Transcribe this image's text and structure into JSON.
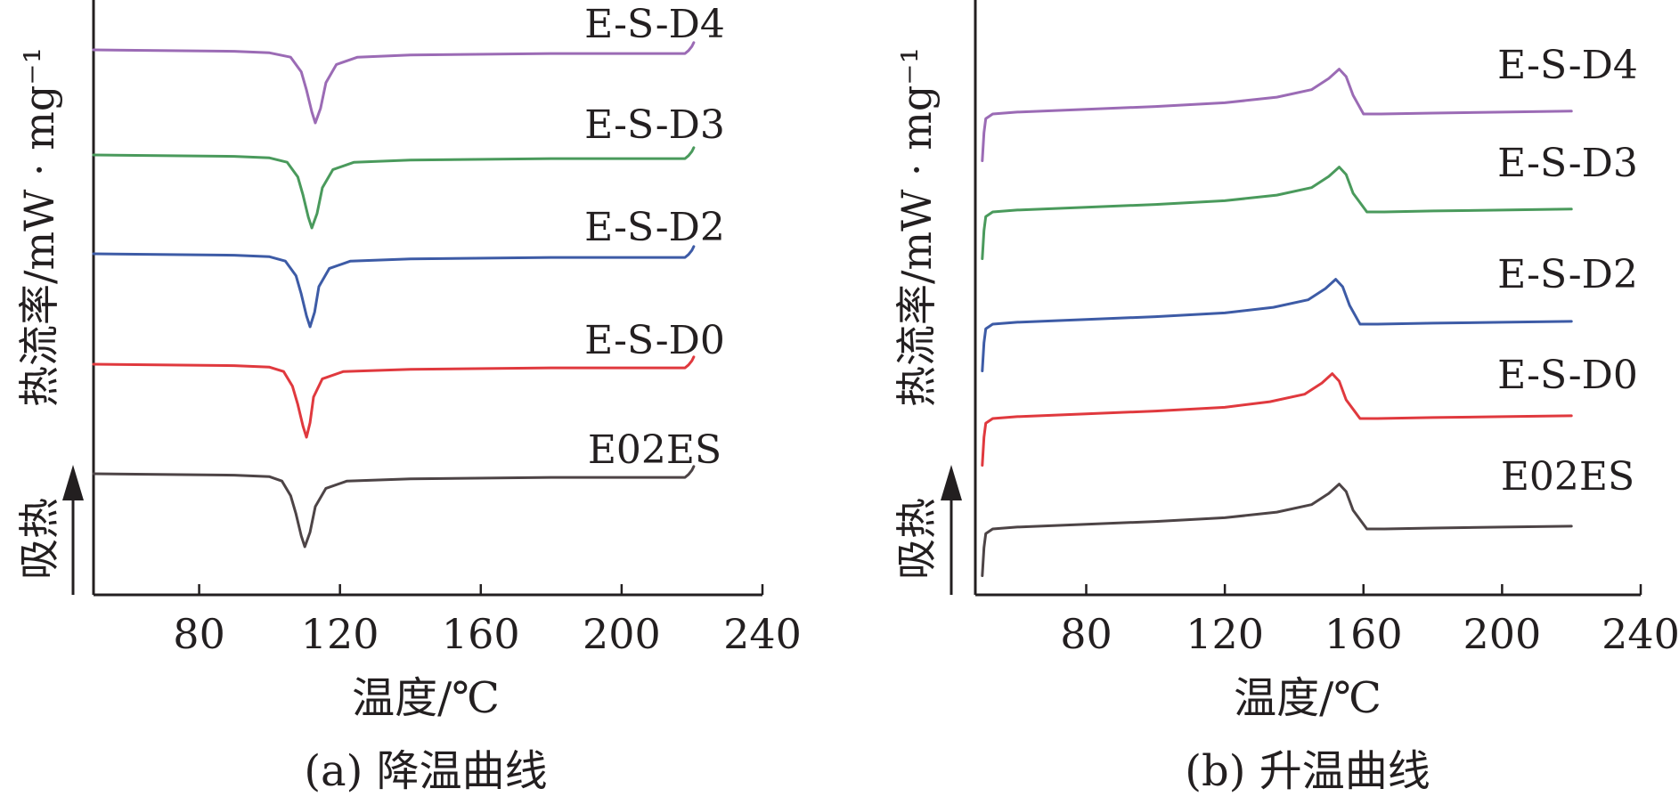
{
  "chart_data": [
    {
      "type": "line",
      "caption": "(a) 降温曲线",
      "xlabel": "温度/℃",
      "ylabel": "热流率/mW · mg⁻¹",
      "y_direction_label": "吸热",
      "xlim": [
        50,
        240
      ],
      "xticks": [
        80,
        120,
        160,
        200,
        240
      ],
      "grid": false,
      "series": [
        {
          "name": "E-S-D4",
          "color": "#9b6bb5",
          "x": [
            50,
            90,
            100,
            106,
            109,
            110.5,
            112,
            113,
            114.5,
            116,
            119,
            125,
            140,
            180,
            218,
            219,
            220,
            220.5
          ],
          "y": [
            1.0,
            0.98,
            0.96,
            0.9,
            0.7,
            0.45,
            0.15,
            0.0,
            0.2,
            0.55,
            0.8,
            0.9,
            0.93,
            0.95,
            0.95,
            0.99,
            1.05,
            1.1
          ]
        },
        {
          "name": "E-S-D3",
          "color": "#4a9a5c",
          "x": [
            50,
            90,
            100,
            105,
            108,
            109.5,
            111,
            112,
            113.5,
            115,
            118,
            124,
            140,
            180,
            218,
            219,
            220,
            220.5
          ],
          "y": [
            1.0,
            0.98,
            0.96,
            0.9,
            0.7,
            0.45,
            0.15,
            0.0,
            0.2,
            0.55,
            0.8,
            0.9,
            0.93,
            0.95,
            0.95,
            0.99,
            1.05,
            1.1
          ]
        },
        {
          "name": "E-S-D2",
          "color": "#3d5ba6",
          "x": [
            50,
            90,
            100,
            104.5,
            107.5,
            109,
            110.5,
            111.5,
            112.8,
            114,
            117,
            123,
            140,
            180,
            218,
            219,
            220,
            220.5
          ],
          "y": [
            1.0,
            0.98,
            0.96,
            0.9,
            0.7,
            0.45,
            0.15,
            0.0,
            0.2,
            0.55,
            0.8,
            0.9,
            0.93,
            0.95,
            0.95,
            0.99,
            1.05,
            1.1
          ]
        },
        {
          "name": "E-S-D0",
          "color": "#e0393e",
          "x": [
            50,
            90,
            100,
            104,
            106.5,
            108,
            109.5,
            110.5,
            111.5,
            112.5,
            115,
            121,
            140,
            180,
            218,
            219,
            220,
            220.5
          ],
          "y": [
            1.0,
            0.98,
            0.96,
            0.9,
            0.7,
            0.45,
            0.15,
            0.0,
            0.2,
            0.55,
            0.8,
            0.9,
            0.93,
            0.95,
            0.95,
            0.99,
            1.05,
            1.1
          ]
        },
        {
          "name": "E02ES",
          "color": "#4d4446",
          "x": [
            50,
            90,
            100,
            103.5,
            106,
            107.5,
            109,
            110,
            111.5,
            113,
            116,
            122,
            140,
            180,
            218,
            219,
            220,
            220.5
          ],
          "y": [
            1.0,
            0.98,
            0.96,
            0.9,
            0.7,
            0.45,
            0.15,
            0.0,
            0.2,
            0.55,
            0.8,
            0.9,
            0.93,
            0.95,
            0.95,
            0.99,
            1.05,
            1.1
          ]
        }
      ]
    },
    {
      "type": "line",
      "caption": "(b) 升温曲线",
      "xlabel": "温度/℃",
      "ylabel": "热流率/mW · mg⁻¹",
      "y_direction_label": "吸热",
      "xlim": [
        48,
        240
      ],
      "xticks": [
        80,
        120,
        160,
        200,
        240
      ],
      "grid": false,
      "series": [
        {
          "name": "E-S-D4",
          "color": "#9b6bb5",
          "x": [
            50,
            50.5,
            51,
            53,
            60,
            80,
            100,
            120,
            135,
            145,
            150,
            153,
            155,
            157,
            160,
            165,
            180,
            200,
            220
          ],
          "y": [
            0.0,
            0.3,
            0.45,
            0.5,
            0.52,
            0.55,
            0.58,
            0.62,
            0.68,
            0.76,
            0.88,
            0.98,
            0.9,
            0.7,
            0.5,
            0.5,
            0.51,
            0.52,
            0.53
          ]
        },
        {
          "name": "E-S-D3",
          "color": "#4a9a5c",
          "x": [
            50,
            50.5,
            51,
            53,
            60,
            80,
            100,
            120,
            135,
            145,
            150,
            153,
            155,
            157,
            161,
            166,
            180,
            200,
            220
          ],
          "y": [
            0.0,
            0.3,
            0.45,
            0.5,
            0.52,
            0.55,
            0.58,
            0.62,
            0.68,
            0.76,
            0.88,
            0.98,
            0.9,
            0.7,
            0.5,
            0.5,
            0.51,
            0.52,
            0.53
          ]
        },
        {
          "name": "E-S-D2",
          "color": "#3d5ba6",
          "x": [
            50,
            50.5,
            51,
            53,
            60,
            80,
            100,
            120,
            134,
            144,
            149,
            152,
            154,
            156,
            159,
            164,
            180,
            200,
            220
          ],
          "y": [
            0.0,
            0.3,
            0.45,
            0.5,
            0.52,
            0.55,
            0.58,
            0.62,
            0.68,
            0.76,
            0.88,
            0.98,
            0.9,
            0.7,
            0.5,
            0.5,
            0.51,
            0.52,
            0.53
          ]
        },
        {
          "name": "E-S-D0",
          "color": "#e0393e",
          "x": [
            50,
            50.5,
            51,
            53,
            60,
            80,
            100,
            120,
            133,
            143,
            148,
            151,
            153,
            155,
            159,
            164,
            180,
            200,
            220
          ],
          "y": [
            0.0,
            0.3,
            0.45,
            0.5,
            0.52,
            0.55,
            0.58,
            0.62,
            0.68,
            0.76,
            0.88,
            0.98,
            0.9,
            0.7,
            0.5,
            0.5,
            0.51,
            0.52,
            0.53
          ]
        },
        {
          "name": "E02ES",
          "color": "#4d4446",
          "x": [
            50,
            50.5,
            51,
            53,
            60,
            80,
            100,
            120,
            135,
            145,
            150,
            153,
            155,
            157,
            161,
            166,
            180,
            200,
            220
          ],
          "y": [
            0.0,
            0.3,
            0.45,
            0.5,
            0.52,
            0.55,
            0.58,
            0.62,
            0.68,
            0.76,
            0.88,
            0.98,
            0.9,
            0.7,
            0.5,
            0.5,
            0.51,
            0.52,
            0.53
          ]
        }
      ]
    }
  ]
}
